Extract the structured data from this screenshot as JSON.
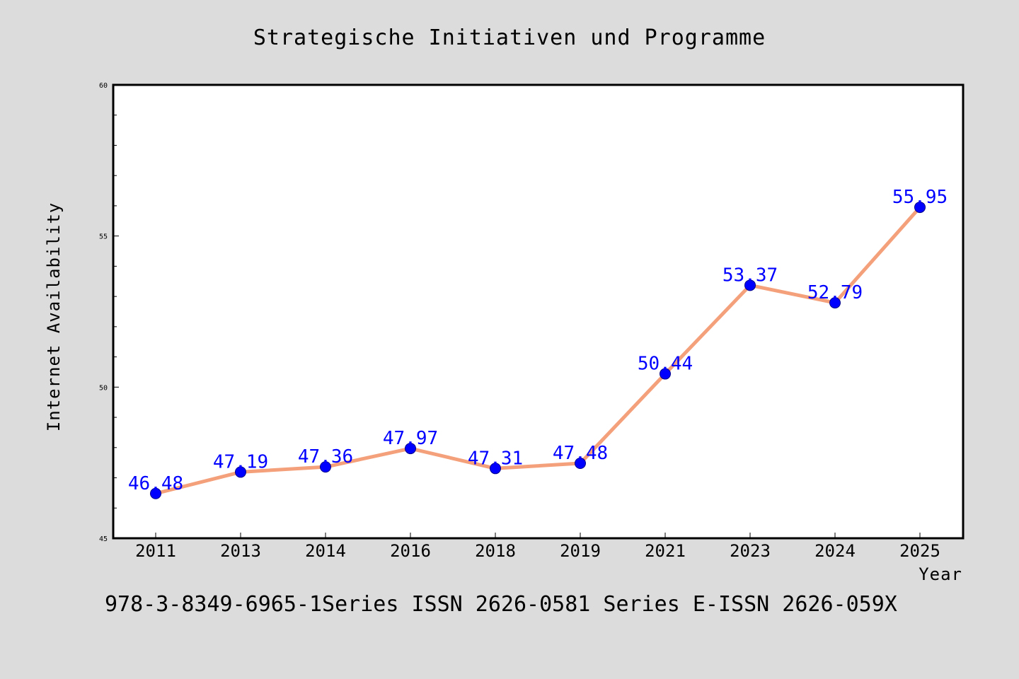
{
  "chart_data": {
    "type": "line",
    "title": "Strategische Initiativen und Programme",
    "xlabel": "Year",
    "ylabel": "Internet Availability",
    "categories": [
      "2011",
      "2013",
      "2014",
      "2016",
      "2018",
      "2019",
      "2021",
      "2023",
      "2024",
      "2025"
    ],
    "series": [
      {
        "values": [
          46.48,
          47.19,
          47.36,
          47.97,
          47.31,
          47.48,
          50.44,
          53.37,
          52.79,
          55.95
        ],
        "labels": [
          "46.48",
          "47.19",
          "47.36",
          "47.97",
          "47.31",
          "47.48",
          "50.44",
          "53.37",
          "52.79",
          "55.95"
        ],
        "line_color": "#f4a07a",
        "marker_color": "#0000ff"
      }
    ],
    "ylim": [
      45,
      60
    ],
    "yticks": [
      "45",
      "50",
      "55",
      "60"
    ],
    "grid": false,
    "legend": "none"
  },
  "footer": "978-3-8349-6965-1Series ISSN 2626-0581 Series E-ISSN 2626-059X",
  "colors": {
    "background": "#dcdcdc",
    "plot_background": "#ffffff",
    "line": "#f4a07a",
    "marker": "#0000ff",
    "label": "#0000ff"
  }
}
